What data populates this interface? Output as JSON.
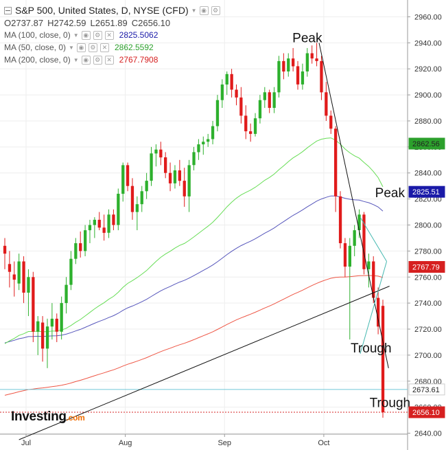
{
  "header": {
    "title": "S&P 500, United States, D, NYSE (CFD)",
    "ohlc": [
      {
        "k": "O",
        "v": "2737.87"
      },
      {
        "k": "H",
        "v": "2742.59"
      },
      {
        "k": "L",
        "v": "2651.89"
      },
      {
        "k": "C",
        "v": "2656.10"
      }
    ],
    "ma": [
      {
        "label": "MA (100, close, 0)",
        "value": "2825.5062",
        "color": "#1a1aa8"
      },
      {
        "label": "MA (50, close, 0)",
        "value": "2862.5592",
        "color": "#2ca02c"
      },
      {
        "label": "MA (200, close, 0)",
        "value": "2767.7908",
        "color": "#d62020"
      }
    ]
  },
  "logo": {
    "text": "Investing",
    "suffix": ".com"
  },
  "colors": {
    "up": "#2db02d",
    "down": "#e01b1b",
    "ma50": "#66dd55",
    "ma100": "#5555bb",
    "ma200": "#ee5544",
    "trend": "#111111",
    "channel": "#44b8b0"
  },
  "chart_data": {
    "type": "candlestick",
    "y_ticks": [
      "2960.00",
      "2940.00",
      "2920.00",
      "2900.00",
      "2880.00",
      "2860.00",
      "2840.00",
      "2820.00",
      "2800.00",
      "2780.00",
      "2760.00",
      "2740.00",
      "2720.00",
      "2700.00",
      "2680.00",
      "2660.00",
      "2640.00"
    ],
    "ylim": [
      2635,
      2965
    ],
    "x_labels": [
      "Jul",
      "Aug",
      "Sep",
      "Oct"
    ],
    "x_label_index": [
      5,
      26,
      47,
      68
    ],
    "price_labels": [
      {
        "text": "2862.56",
        "value": 2862.56,
        "color": "#2ca02c",
        "fg": "#222"
      },
      {
        "text": "2825.51",
        "value": 2825.51,
        "color": "#1a1aa8",
        "fg": "#ffffff"
      },
      {
        "text": "2767.79",
        "value": 2767.79,
        "color": "#d62020",
        "fg": "#ffffff"
      },
      {
        "text": "2673.61",
        "value": 2673.61,
        "color": "#ffffff",
        "fg": "#222"
      },
      {
        "text": "2656.10",
        "value": 2656.1,
        "color": "#d62020",
        "fg": "#ffffff"
      }
    ],
    "horizontal_lines": [
      {
        "value": 2673.61,
        "color": "#6fc6d6",
        "dash": ""
      },
      {
        "value": 2656.1,
        "color": "#d62020",
        "dash": "2,2"
      }
    ],
    "annotations": [
      {
        "text": "Peak",
        "x_index": 64,
        "y": 2940.5
      },
      {
        "text": "Peak",
        "x_index": 81.5,
        "y": 2821.5
      },
      {
        "text": "Trough",
        "x_index": 77.5,
        "y": 2702
      },
      {
        "text": "Trough",
        "x_index": 81.5,
        "y": 2660
      }
    ],
    "candles": [
      [
        2784,
        2790,
        2766,
        2778
      ],
      [
        2770,
        2780,
        2752,
        2764
      ],
      [
        2762,
        2772,
        2745,
        2758
      ],
      [
        2755,
        2778,
        2750,
        2772
      ],
      [
        2772,
        2776,
        2740,
        2748
      ],
      [
        2748,
        2766,
        2730,
        2760
      ],
      [
        2760,
        2764,
        2710,
        2718
      ],
      [
        2718,
        2730,
        2700,
        2726
      ],
      [
        2725,
        2730,
        2695,
        2705
      ],
      [
        2705,
        2728,
        2690,
        2722
      ],
      [
        2722,
        2740,
        2712,
        2728
      ],
      [
        2728,
        2732,
        2710,
        2718
      ],
      [
        2718,
        2745,
        2712,
        2740
      ],
      [
        2740,
        2760,
        2732,
        2754
      ],
      [
        2754,
        2780,
        2750,
        2774
      ],
      [
        2774,
        2790,
        2770,
        2786
      ],
      [
        2786,
        2795,
        2775,
        2780
      ],
      [
        2780,
        2800,
        2776,
        2796
      ],
      [
        2796,
        2804,
        2786,
        2800
      ],
      [
        2800,
        2806,
        2790,
        2804
      ],
      [
        2804,
        2810,
        2796,
        2798
      ],
      [
        2798,
        2808,
        2788,
        2794
      ],
      [
        2794,
        2812,
        2790,
        2808
      ],
      [
        2808,
        2812,
        2796,
        2800
      ],
      [
        2800,
        2828,
        2796,
        2824
      ],
      [
        2824,
        2848,
        2818,
        2846
      ],
      [
        2846,
        2848,
        2826,
        2830
      ],
      [
        2830,
        2836,
        2804,
        2810
      ],
      [
        2810,
        2822,
        2796,
        2816
      ],
      [
        2816,
        2830,
        2810,
        2826
      ],
      [
        2826,
        2840,
        2820,
        2834
      ],
      [
        2834,
        2860,
        2830,
        2855
      ],
      [
        2855,
        2862,
        2845,
        2858
      ],
      [
        2858,
        2864,
        2846,
        2852
      ],
      [
        2852,
        2856,
        2836,
        2840
      ],
      [
        2840,
        2848,
        2826,
        2832
      ],
      [
        2832,
        2846,
        2828,
        2842
      ],
      [
        2842,
        2850,
        2830,
        2834
      ],
      [
        2834,
        2844,
        2814,
        2822
      ],
      [
        2822,
        2850,
        2810,
        2846
      ],
      [
        2846,
        2860,
        2842,
        2856
      ],
      [
        2856,
        2866,
        2850,
        2862
      ],
      [
        2862,
        2868,
        2854,
        2864
      ],
      [
        2864,
        2870,
        2860,
        2866
      ],
      [
        2866,
        2880,
        2862,
        2876
      ],
      [
        2876,
        2900,
        2872,
        2896
      ],
      [
        2896,
        2912,
        2890,
        2908
      ],
      [
        2908,
        2918,
        2900,
        2916
      ],
      [
        2916,
        2920,
        2898,
        2904
      ],
      [
        2904,
        2908,
        2892,
        2898
      ],
      [
        2898,
        2906,
        2878,
        2884
      ],
      [
        2884,
        2892,
        2866,
        2872
      ],
      [
        2872,
        2878,
        2864,
        2870
      ],
      [
        2870,
        2886,
        2868,
        2882
      ],
      [
        2882,
        2900,
        2878,
        2896
      ],
      [
        2896,
        2906,
        2890,
        2902
      ],
      [
        2902,
        2904,
        2886,
        2890
      ],
      [
        2890,
        2906,
        2886,
        2902
      ],
      [
        2902,
        2930,
        2898,
        2926
      ],
      [
        2926,
        2932,
        2912,
        2918
      ],
      [
        2918,
        2932,
        2914,
        2928
      ],
      [
        2928,
        2936,
        2918,
        2922
      ],
      [
        2922,
        2926,
        2904,
        2908
      ],
      [
        2908,
        2924,
        2904,
        2918
      ],
      [
        2918,
        2936,
        2914,
        2932
      ],
      [
        2932,
        2938,
        2924,
        2928
      ],
      [
        2928,
        2940,
        2922,
        2926
      ],
      [
        2926,
        2930,
        2896,
        2902
      ],
      [
        2902,
        2910,
        2880,
        2884
      ],
      [
        2884,
        2888,
        2870,
        2874
      ],
      [
        2874,
        2876,
        2810,
        2822
      ],
      [
        2822,
        2826,
        2782,
        2786
      ],
      [
        2786,
        2790,
        2760,
        2768
      ],
      [
        2768,
        2790,
        2712,
        2784
      ],
      [
        2784,
        2800,
        2776,
        2796
      ],
      [
        2796,
        2812,
        2790,
        2808
      ],
      [
        2808,
        2810,
        2762,
        2766
      ],
      [
        2766,
        2778,
        2752,
        2772
      ],
      [
        2772,
        2776,
        2740,
        2744
      ],
      [
        2744,
        2752,
        2716,
        2722
      ],
      [
        2737.87,
        2742.59,
        2651.89,
        2656.1
      ]
    ]
  }
}
